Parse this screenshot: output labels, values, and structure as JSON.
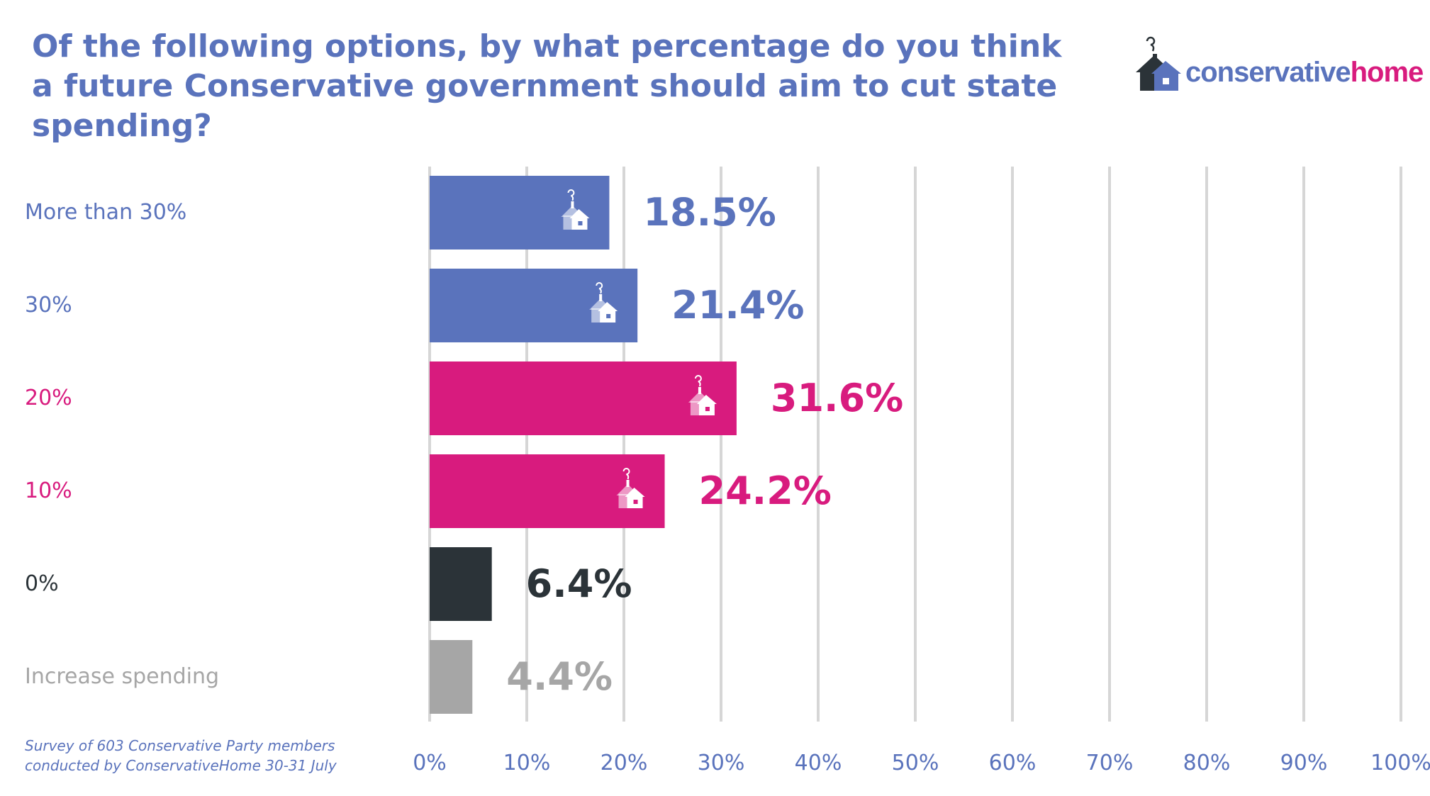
{
  "title": "Of the following options, by what percentage do you think a future Conservative government should aim to cut state spending?",
  "logo": {
    "text_primary": "conservative",
    "text_secondary": "home",
    "icon": "house-chimney-icon",
    "colors": {
      "primary": "#5a73bc",
      "secondary": "#d81b7e",
      "dark": "#2b3338"
    }
  },
  "source": {
    "line1": "Survey of 603 Conservative Party members",
    "line2": "conducted by ConservativeHome 30-31 July"
  },
  "chart_data": {
    "type": "bar",
    "orientation": "horizontal",
    "categories": [
      "More than 30%",
      "30%",
      "20%",
      "10%",
      "0%",
      "Increase spending"
    ],
    "values": [
      18.5,
      21.4,
      31.6,
      24.2,
      6.4,
      4.4
    ],
    "value_labels": [
      "18.5%",
      "21.4%",
      "31.6%",
      "24.2%",
      "6.4%",
      "4.4%"
    ],
    "colors": [
      "#5a73bc",
      "#5a73bc",
      "#d81b7e",
      "#d81b7e",
      "#2b3338",
      "#a6a6a6"
    ],
    "bar_icons": [
      true,
      true,
      true,
      true,
      false,
      false
    ],
    "xlim": [
      0,
      100
    ],
    "x_ticks": [
      "0%",
      "10%",
      "20%",
      "30%",
      "40%",
      "50%",
      "60%",
      "70%",
      "80%",
      "90%",
      "100%"
    ],
    "tick_color": "#5a73bc",
    "grid": true,
    "grid_color": "#d6d6d6"
  }
}
